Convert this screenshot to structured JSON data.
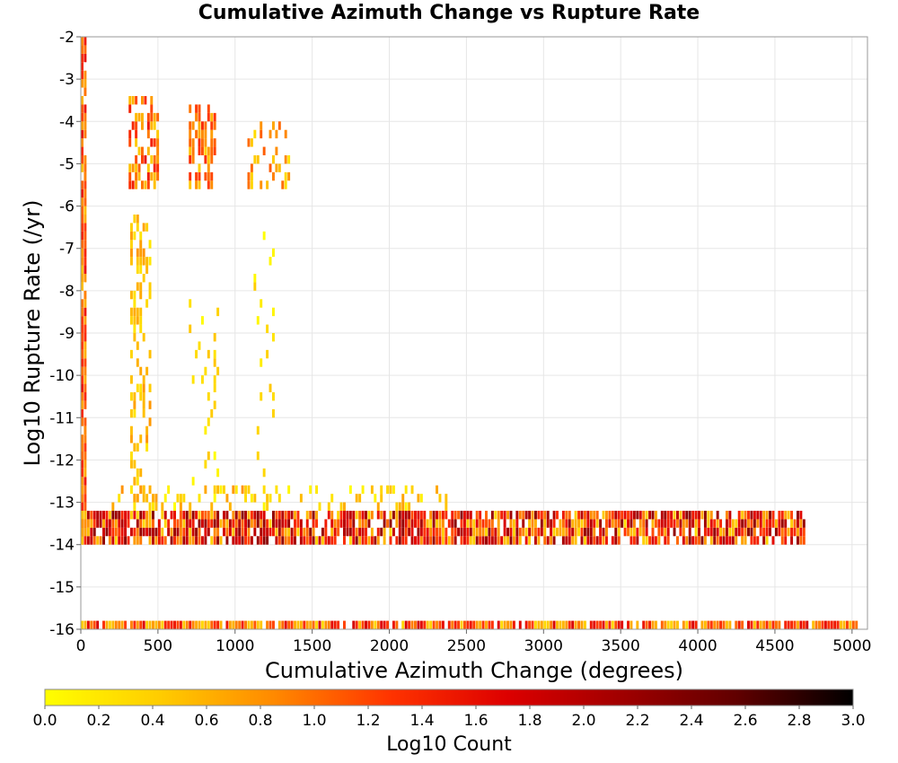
{
  "chart_data": {
    "type": "heatmap",
    "title": "Cumulative Azimuth Change vs Rupture Rate",
    "xlabel": "Cumulative Azimuth Change (degrees)",
    "ylabel": "Log10 Rupture Rate (/yr)",
    "xlim": [
      0,
      5100
    ],
    "ylim": [
      -16,
      -2
    ],
    "x_ticks": [
      0,
      500,
      1000,
      1500,
      2000,
      2500,
      3000,
      3500,
      4000,
      4500,
      5000
    ],
    "y_ticks": [
      -2,
      -3,
      -4,
      -5,
      -6,
      -7,
      -8,
      -9,
      -10,
      -11,
      -12,
      -13,
      -14,
      -15,
      -16
    ],
    "grid": true,
    "colorbar": {
      "label": "Log10 Count",
      "range": [
        0.0,
        3.0
      ],
      "ticks": [
        "0.0",
        "0.2",
        "0.4",
        "0.6",
        "0.8",
        "1.0",
        "1.2",
        "1.4",
        "1.6",
        "1.8",
        "2.0",
        "2.2",
        "2.4",
        "2.6",
        "2.8",
        "3.0"
      ],
      "colors": [
        "#ffff00",
        "#ffcc00",
        "#ff8800",
        "#ff3300",
        "#dd0000",
        "#a00000",
        "#600000",
        "#000000"
      ]
    },
    "cell_size": {
      "x": 20,
      "y": 0.2
    },
    "regions": [
      {
        "x": [
          0,
          30
        ],
        "y": [
          -14,
          -2
        ],
        "log_count": [
          0.5,
          1.6
        ],
        "density": 0.9
      },
      {
        "x": [
          310,
          500
        ],
        "y": [
          -5.6,
          -3.4
        ],
        "log_count": [
          0.4,
          1.6
        ],
        "density": 0.6
      },
      {
        "x": [
          700,
          880
        ],
        "y": [
          -5.6,
          -3.6
        ],
        "log_count": [
          0.4,
          1.4
        ],
        "density": 0.5
      },
      {
        "x": [
          1080,
          1380
        ],
        "y": [
          -5.6,
          -4.0
        ],
        "log_count": [
          0.2,
          1.1
        ],
        "density": 0.35
      },
      {
        "x": [
          320,
          450
        ],
        "y": [
          -13,
          -6.2
        ],
        "log_count": [
          0.2,
          0.8
        ],
        "density": 0.35
      },
      {
        "x": [
          700,
          900
        ],
        "y": [
          -13,
          -8.2
        ],
        "log_count": [
          0.0,
          0.5
        ],
        "density": 0.08
      },
      {
        "x": [
          1100,
          1250
        ],
        "y": [
          -13,
          -6.2
        ],
        "log_count": [
          0.0,
          0.5
        ],
        "density": 0.08
      },
      {
        "x": [
          200,
          2400
        ],
        "y": [
          -13.2,
          -12.6
        ],
        "log_count": [
          0.0,
          0.8
        ],
        "density": 0.25
      },
      {
        "x": [
          0,
          4700
        ],
        "y": [
          -14,
          -13.2
        ],
        "log_count": [
          0.3,
          2.3
        ],
        "density": 0.85
      },
      {
        "x": [
          0,
          5050
        ],
        "y": [
          -16,
          -15.8
        ],
        "log_count": [
          0.3,
          1.8
        ],
        "density": 0.9
      }
    ]
  }
}
